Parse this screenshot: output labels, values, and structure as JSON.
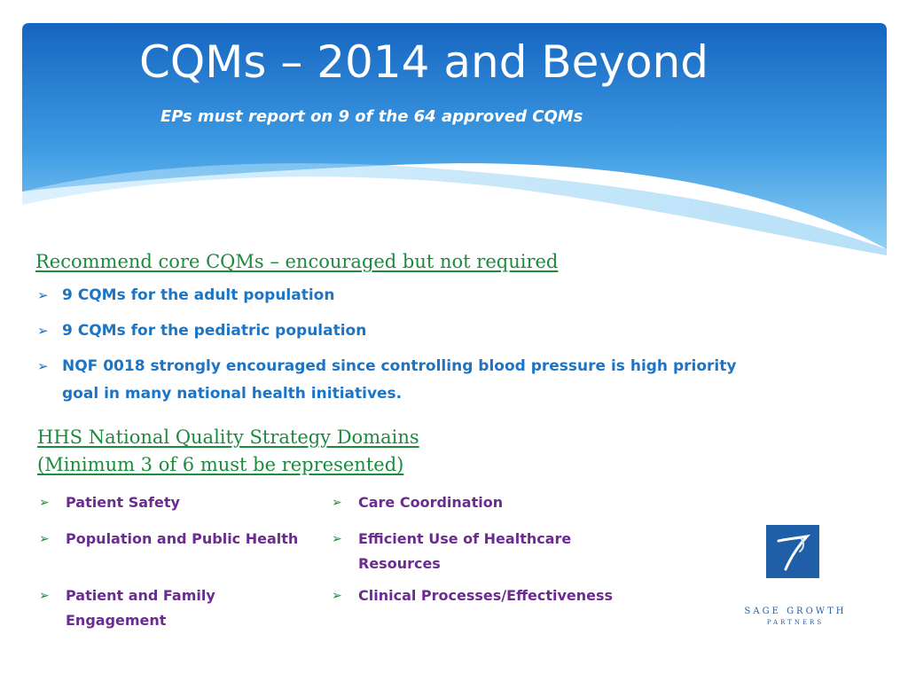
{
  "header": {
    "title": "CQMs – 2014 and Beyond",
    "subtitle": "EPs must report on 9 of the 64 approved CQMs"
  },
  "core_section": {
    "heading": "Recommend core CQMs – encouraged but not required",
    "items": [
      "9 CQMs for the adult population",
      "9 CQMs for the pediatric population",
      "NQF 0018 strongly encouraged since controlling blood pressure is high priority goal in many national health initiatives."
    ]
  },
  "domains_section": {
    "heading_line1": "HHS National Quality Strategy Domains",
    "heading_line2": "(Minimum 3 of 6 must be represented)",
    "items": [
      "Patient Safety",
      "Care Coordination",
      "Population and Public Health",
      "Efficient Use of Healthcare Resources",
      "Patient and Family Engagement",
      "Clinical Processes/Effectiveness"
    ]
  },
  "logo": {
    "name": "SAGE GROWTH",
    "sub": "PARTNERS"
  },
  "colors": {
    "banner_top": "#1565c0",
    "banner_bottom": "#8fd0f5",
    "heading_green": "#1b8b3c",
    "bullet_blue": "#1e74c4",
    "domain_purple": "#6a2d8f"
  },
  "icons": {
    "bullet": "arrow-bullet-icon"
  }
}
